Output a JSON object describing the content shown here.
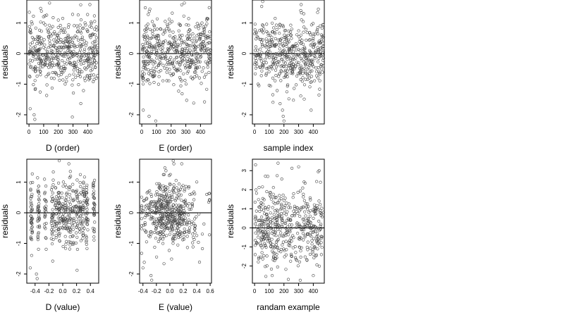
{
  "figure": {
    "background": "#ffffff",
    "point_color": "#444444"
  },
  "chart_data": [
    {
      "type": "scatter",
      "xlabel": "D (order)",
      "ylabel": "residuals",
      "xlim": [
        -15,
        475
      ],
      "ylim": [
        -2.3,
        1.75
      ],
      "xticks": [
        0,
        100,
        200,
        300,
        400
      ],
      "yticks": [
        -2,
        -1,
        0,
        1
      ],
      "reference_line_y": 0,
      "n_points": 470,
      "x_distribution": "index",
      "x_range": [
        0,
        470
      ],
      "y_distribution": "residual",
      "sd": 0.55,
      "seed": 11,
      "highlights": [
        [
          8,
          -1.8
        ],
        [
          35,
          -2.0
        ],
        [
          40,
          -2.15
        ],
        [
          140,
          1.65
        ],
        [
          230,
          1.15
        ],
        [
          100,
          1.0
        ],
        [
          355,
          1.1
        ]
      ]
    },
    {
      "type": "scatter",
      "xlabel": "E (order)",
      "ylabel": "residuals",
      "xlim": [
        -15,
        475
      ],
      "ylim": [
        -2.3,
        1.75
      ],
      "xticks": [
        0,
        100,
        200,
        300,
        400
      ],
      "yticks": [
        -2,
        -1,
        0,
        1
      ],
      "reference_line_y": 0,
      "n_points": 470,
      "x_distribution": "index",
      "x_range": [
        0,
        470
      ],
      "y_distribution": "residual",
      "sd": 0.55,
      "seed": 23,
      "highlights": [
        [
          10,
          -1.85
        ],
        [
          50,
          -2.05
        ],
        [
          95,
          -2.2
        ],
        [
          290,
          1.65
        ],
        [
          160,
          1.05
        ],
        [
          410,
          1.0
        ]
      ]
    },
    {
      "type": "scatter",
      "xlabel": "sample index",
      "ylabel": "residuals",
      "xlim": [
        -15,
        475
      ],
      "ylim": [
        -2.3,
        1.75
      ],
      "xticks": [
        0,
        100,
        200,
        300,
        400
      ],
      "yticks": [
        -2,
        -1,
        0,
        1
      ],
      "reference_line_y": 0,
      "n_points": 470,
      "x_distribution": "index",
      "x_range": [
        0,
        470
      ],
      "y_distribution": "residual",
      "sd": 0.55,
      "seed": 37,
      "highlights": [
        [
          55,
          1.7
        ],
        [
          190,
          -1.85
        ],
        [
          195,
          -2.05
        ],
        [
          200,
          -2.2
        ],
        [
          385,
          -1.85
        ],
        [
          140,
          1.15
        ],
        [
          320,
          1.1
        ]
      ]
    },
    {
      "type": "scatter",
      "xlabel": "D (value)",
      "ylabel": "residuals",
      "xlim": [
        -0.52,
        0.52
      ],
      "ylim": [
        -2.3,
        1.75
      ],
      "xticks": [
        -0.4,
        -0.2,
        0.0,
        0.2,
        0.4
      ],
      "yticks": [
        -2,
        -1,
        0,
        1
      ],
      "xtick_labels": [
        "-0.4",
        "-0.2",
        "0.0",
        "0.2",
        "0.4"
      ],
      "reference_line_y": 0,
      "n_points": 470,
      "x_distribution": "columns",
      "x_columns": [
        -0.45,
        -0.35,
        -0.25,
        -0.15,
        -0.1,
        -0.05,
        0.0,
        0.05,
        0.1,
        0.15,
        0.2,
        0.25,
        0.3,
        0.35,
        0.45
      ],
      "y_distribution": "residual",
      "sd": 0.55,
      "seed": 53,
      "highlights": [
        [
          -0.47,
          -1.8
        ],
        [
          -0.38,
          -2.0
        ],
        [
          -0.37,
          -2.15
        ],
        [
          -0.05,
          1.7
        ],
        [
          0.1,
          1.15
        ],
        [
          0.3,
          1.0
        ]
      ]
    },
    {
      "type": "scatter",
      "xlabel": "E (value)",
      "ylabel": "residuals",
      "xlim": [
        -0.45,
        0.62
      ],
      "ylim": [
        -2.3,
        1.75
      ],
      "xticks": [
        -0.4,
        -0.2,
        0.0,
        0.2,
        0.4,
        0.6
      ],
      "yticks": [
        -2,
        -1,
        0,
        1
      ],
      "xtick_labels": [
        "-0.4",
        "-0.2",
        "0.0",
        "0.2",
        "0.4",
        "0.6"
      ],
      "reference_line_y": 0,
      "n_points": 470,
      "x_distribution": "centered",
      "x_center": 0.0,
      "x_spread": 0.22,
      "y_distribution": "residual",
      "sd": 0.55,
      "seed": 71,
      "highlights": [
        [
          -0.4,
          -1.8
        ],
        [
          -0.28,
          -2.05
        ],
        [
          -0.27,
          -2.2
        ],
        [
          0.05,
          1.7
        ],
        [
          0.0,
          0.95
        ],
        [
          0.55,
          0.6
        ]
      ]
    },
    {
      "type": "scatter",
      "xlabel": "randam example",
      "ylabel": "residuals",
      "xlim": [
        -15,
        475
      ],
      "ylim": [
        -2.9,
        3.6
      ],
      "xticks": [
        0,
        100,
        200,
        300,
        400
      ],
      "yticks": [
        -2,
        -1,
        0,
        1,
        2,
        3
      ],
      "reference_line_y": 0,
      "n_points": 470,
      "x_distribution": "index",
      "x_range": [
        0,
        470
      ],
      "y_distribution": "residual",
      "sd": 1.0,
      "seed": 97,
      "highlights": [
        [
          300,
          3.2
        ],
        [
          440,
          3.0
        ],
        [
          90,
          2.7
        ],
        [
          230,
          -2.7
        ],
        [
          120,
          -2.5
        ],
        [
          400,
          -2.5
        ]
      ]
    }
  ]
}
